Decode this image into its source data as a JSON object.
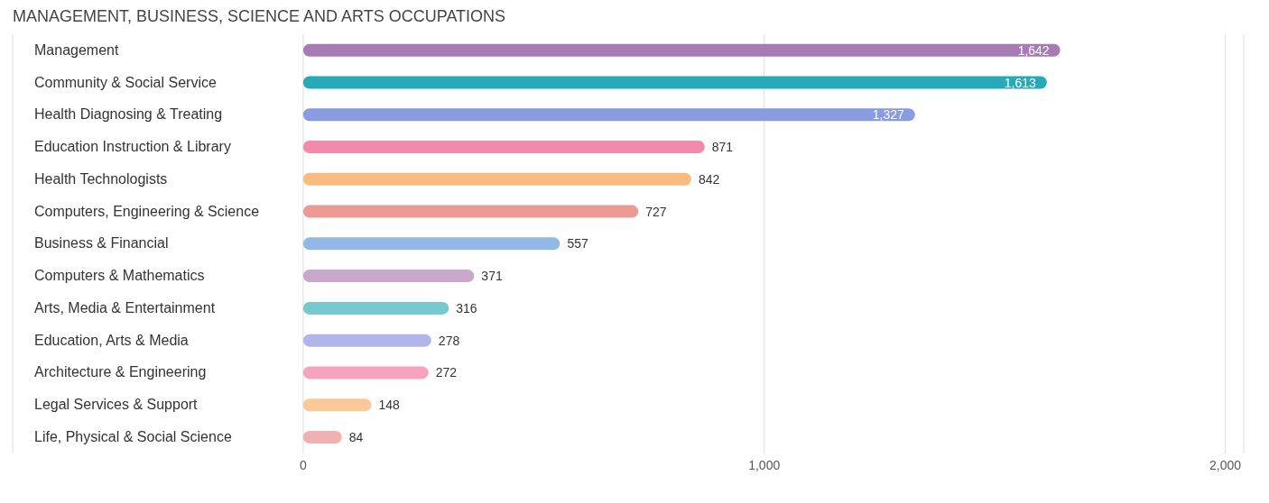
{
  "chart_data": {
    "type": "bar",
    "orientation": "horizontal",
    "title": "MANAGEMENT, BUSINESS, SCIENCE AND ARTS OCCUPATIONS",
    "categories": [
      "Management",
      "Community & Social Service",
      "Health Diagnosing & Treating",
      "Education Instruction & Library",
      "Health Technologists",
      "Computers, Engineering & Science",
      "Business & Financial",
      "Computers & Mathematics",
      "Arts, Media & Entertainment",
      "Education, Arts & Media",
      "Architecture & Engineering",
      "Legal Services & Support",
      "Life, Physical & Social Science"
    ],
    "values": [
      1642,
      1613,
      1327,
      871,
      842,
      727,
      557,
      371,
      316,
      278,
      272,
      148,
      84
    ],
    "colors": [
      "#a87bb5",
      "#27a9b8",
      "#8b9be0",
      "#f28aab",
      "#f9bb7f",
      "#ec9a92",
      "#92b9e6",
      "#c9a8cc",
      "#76c9cf",
      "#b0b5ea",
      "#f5a3bf",
      "#f9c99a",
      "#f0b2b0"
    ],
    "xlim": [
      -630,
      2040
    ],
    "xticks": [
      0,
      {
        "value": 1000,
        "label": "1,000"
      },
      {
        "value": 2000,
        "label": "2,000"
      }
    ],
    "value_labels": [
      "1,642",
      "1,613",
      "1,327",
      "871",
      "842",
      "727",
      "557",
      "371",
      "316",
      "278",
      "272",
      "148",
      "84"
    ],
    "grid": "x"
  }
}
